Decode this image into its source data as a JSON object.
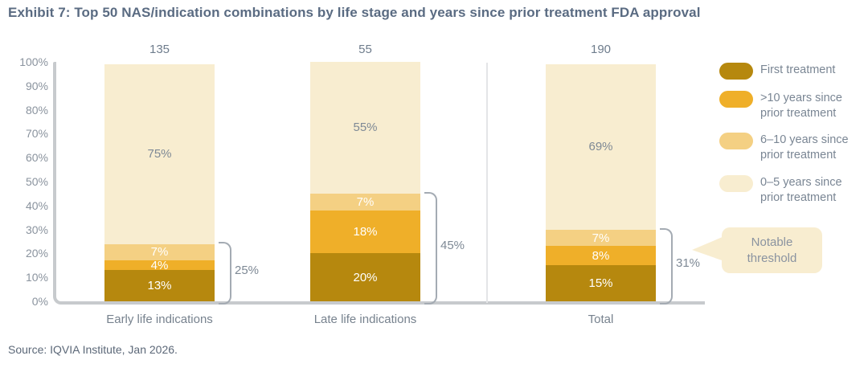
{
  "title": "Exhibit 7: Top 50 NAS/indication combinations by life stage and years since prior treatment FDA approval",
  "source": "Source: IQVIA Institute, Jan 2026.",
  "callout": {
    "label": "Notable threshold"
  },
  "colors": {
    "first_treatment": "#B6880E",
    "gt10_years": "#EFAF29",
    "six_to_ten_years": "#F4D083",
    "zero_to_five_years": "#F8EDD0",
    "title_text": "#5A6B82",
    "axis_line": "#C7CACD",
    "muted_text": "#7E8995",
    "bracket_line": "#A4ABB3"
  },
  "chart_data": {
    "type": "bar",
    "stacked": true,
    "title": "Top 50 NAS/indication combinations by life stage and years since prior treatment FDA approval",
    "categories": [
      "Early life indications",
      "Late life indications",
      "Total"
    ],
    "bar_totals": [
      "135",
      "55",
      "190"
    ],
    "series": [
      {
        "name": "First treatment",
        "color": "#B6880E",
        "label_color": "#FFFFFF",
        "values": [
          13,
          20,
          15
        ]
      },
      {
        "name": ">10 years since prior treatment",
        "color": "#EFAF29",
        "label_color": "#FFFFFF",
        "values": [
          4,
          18,
          8
        ]
      },
      {
        "name": "6–10 years since prior treatment",
        "color": "#F4D083",
        "label_color": "#FFFFFF",
        "values": [
          7,
          7,
          7
        ]
      },
      {
        "name": "0–5 years since prior treatment",
        "color": "#F8EDD0",
        "label_color": "#7E8995",
        "values": [
          75,
          55,
          69
        ]
      }
    ],
    "bracket_labels": [
      "25%",
      "45%",
      "31%"
    ],
    "bracket_spans": [
      24,
      45,
      30
    ],
    "ylim": [
      0,
      100
    ],
    "yticks": [
      "100%",
      "90%",
      "80%",
      "70%",
      "60%",
      "50%",
      "40%",
      "30%",
      "20%",
      "10%",
      "0%"
    ],
    "grid": false,
    "legend_position": "right"
  }
}
